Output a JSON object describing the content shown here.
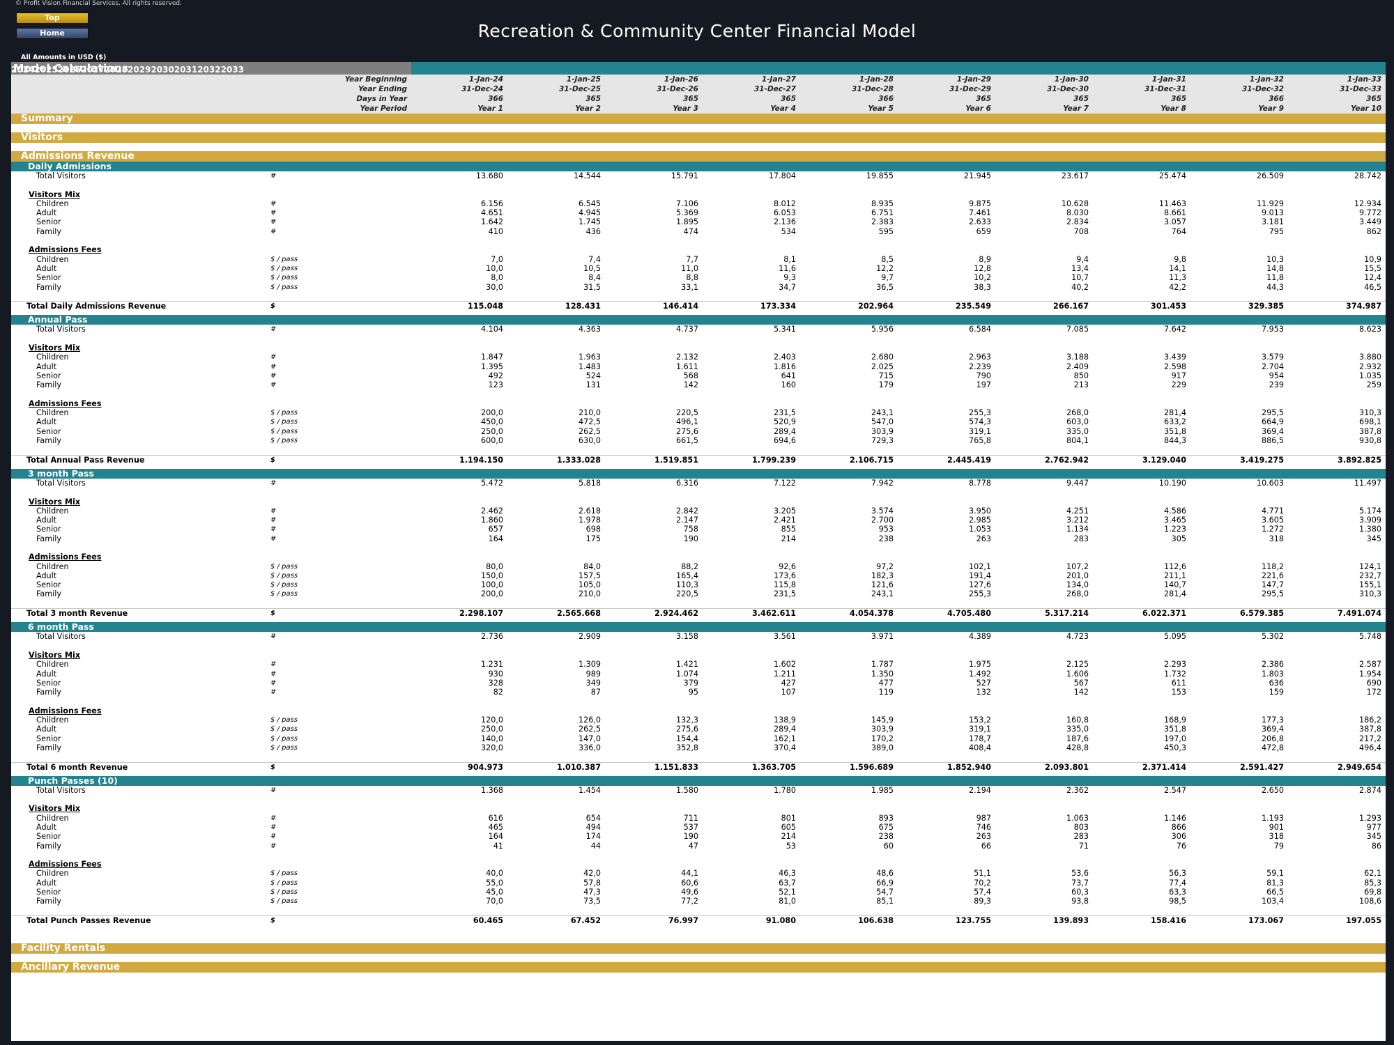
{
  "copyright": "© Profit Vision Financial Services. All rights reserved.",
  "nav": {
    "top": "Top",
    "home": "Home"
  },
  "title": "Recreation & Community Center Financial Model",
  "amounts_note": "All Amounts in  USD ($)",
  "header": {
    "title": "Model Calculations",
    "years": [
      "2024",
      "2025",
      "2026",
      "2027",
      "2028",
      "2029",
      "2030",
      "2031",
      "2032",
      "2033"
    ]
  },
  "timeline": [
    {
      "label": "Year Beginning",
      "values": [
        "1-Jan-24",
        "1-Jan-25",
        "1-Jan-26",
        "1-Jan-27",
        "1-Jan-28",
        "1-Jan-29",
        "1-Jan-30",
        "1-Jan-31",
        "1-Jan-32",
        "1-Jan-33"
      ]
    },
    {
      "label": "Year Ending",
      "values": [
        "31-Dec-24",
        "31-Dec-25",
        "31-Dec-26",
        "31-Dec-27",
        "31-Dec-28",
        "31-Dec-29",
        "31-Dec-30",
        "31-Dec-31",
        "31-Dec-32",
        "31-Dec-33"
      ]
    },
    {
      "label": "Days in Year",
      "values": [
        "366",
        "365",
        "365",
        "365",
        "366",
        "365",
        "365",
        "365",
        "366",
        "365"
      ]
    },
    {
      "label": "Year Period",
      "values": [
        "Year 1",
        "Year 2",
        "Year 3",
        "Year 4",
        "Year 5",
        "Year 6",
        "Year 7",
        "Year 8",
        "Year 9",
        "Year 10"
      ]
    }
  ],
  "sections": {
    "summary": "Summary",
    "visitors": "Visitors",
    "admissions": "Admissions Revenue",
    "facility": "Facility Rentals",
    "ancillary": "Ancillary Revenue"
  },
  "labels": {
    "total_visitors": "Total Visitors",
    "visitors_mix": "Visitors Mix",
    "admissions_fees": "Admissions Fees",
    "children": "Children",
    "adult": "Adult",
    "senior": "Senior",
    "family": "Family",
    "unit_count": "#",
    "unit_pass": "$ / pass",
    "unit_dollar": "$"
  },
  "blocks": [
    {
      "name": "Daily Admissions",
      "total_visitors": [
        "13.680",
        "14.544",
        "15.791",
        "17.804",
        "19.855",
        "21.945",
        "23.617",
        "25.474",
        "26.509",
        "28.742"
      ],
      "mix": [
        [
          "6.156",
          "6.545",
          "7.106",
          "8.012",
          "8.935",
          "9.875",
          "10.628",
          "11.463",
          "11.929",
          "12.934"
        ],
        [
          "4.651",
          "4.945",
          "5.369",
          "6.053",
          "6.751",
          "7.461",
          "8.030",
          "8.661",
          "9.013",
          "9.772"
        ],
        [
          "1.642",
          "1.745",
          "1.895",
          "2.136",
          "2.383",
          "2.633",
          "2.834",
          "3.057",
          "3.181",
          "3.449"
        ],
        [
          "410",
          "436",
          "474",
          "534",
          "595",
          "659",
          "708",
          "764",
          "795",
          "862"
        ]
      ],
      "fees": [
        [
          "7,0",
          "7,4",
          "7,7",
          "8,1",
          "8,5",
          "8,9",
          "9,4",
          "9,8",
          "10,3",
          "10,9"
        ],
        [
          "10,0",
          "10,5",
          "11,0",
          "11,6",
          "12,2",
          "12,8",
          "13,4",
          "14,1",
          "14,8",
          "15,5"
        ],
        [
          "8,0",
          "8,4",
          "8,8",
          "9,3",
          "9,7",
          "10,2",
          "10,7",
          "11,3",
          "11,8",
          "12,4"
        ],
        [
          "30,0",
          "31,5",
          "33,1",
          "34,7",
          "36,5",
          "38,3",
          "40,2",
          "42,2",
          "44,3",
          "46,5"
        ]
      ],
      "total_label": "Total Daily Admissions Revenue",
      "total": [
        "115.048",
        "128.431",
        "146.414",
        "173.334",
        "202.964",
        "235.549",
        "266.167",
        "301.453",
        "329.385",
        "374.987"
      ]
    },
    {
      "name": "Annual Pass",
      "total_visitors": [
        "4.104",
        "4.363",
        "4.737",
        "5.341",
        "5.956",
        "6.584",
        "7.085",
        "7.642",
        "7.953",
        "8.623"
      ],
      "mix": [
        [
          "1.847",
          "1.963",
          "2.132",
          "2.403",
          "2.680",
          "2.963",
          "3.188",
          "3.439",
          "3.579",
          "3.880"
        ],
        [
          "1.395",
          "1.483",
          "1.611",
          "1.816",
          "2.025",
          "2.239",
          "2.409",
          "2.598",
          "2.704",
          "2.932"
        ],
        [
          "492",
          "524",
          "568",
          "641",
          "715",
          "790",
          "850",
          "917",
          "954",
          "1.035"
        ],
        [
          "123",
          "131",
          "142",
          "160",
          "179",
          "197",
          "213",
          "229",
          "239",
          "259"
        ]
      ],
      "fees": [
        [
          "200,0",
          "210,0",
          "220,5",
          "231,5",
          "243,1",
          "255,3",
          "268,0",
          "281,4",
          "295,5",
          "310,3"
        ],
        [
          "450,0",
          "472,5",
          "496,1",
          "520,9",
          "547,0",
          "574,3",
          "603,0",
          "633,2",
          "664,9",
          "698,1"
        ],
        [
          "250,0",
          "262,5",
          "275,6",
          "289,4",
          "303,9",
          "319,1",
          "335,0",
          "351,8",
          "369,4",
          "387,8"
        ],
        [
          "600,0",
          "630,0",
          "661,5",
          "694,6",
          "729,3",
          "765,8",
          "804,1",
          "844,3",
          "886,5",
          "930,8"
        ]
      ],
      "total_label": "Total Annual Pass Revenue",
      "total": [
        "1.194.150",
        "1.333.028",
        "1.519.851",
        "1.799.239",
        "2.106.715",
        "2.445.419",
        "2.762.942",
        "3.129.040",
        "3.419.275",
        "3.892.825"
      ]
    },
    {
      "name": "3 month Pass",
      "total_visitors": [
        "5.472",
        "5.818",
        "6.316",
        "7.122",
        "7.942",
        "8.778",
        "9.447",
        "10.190",
        "10.603",
        "11.497"
      ],
      "mix": [
        [
          "2.462",
          "2.618",
          "2.842",
          "3.205",
          "3.574",
          "3.950",
          "4.251",
          "4.586",
          "4.771",
          "5.174"
        ],
        [
          "1.860",
          "1.978",
          "2.147",
          "2.421",
          "2.700",
          "2.985",
          "3.212",
          "3.465",
          "3.605",
          "3.909"
        ],
        [
          "657",
          "698",
          "758",
          "855",
          "953",
          "1.053",
          "1.134",
          "1.223",
          "1.272",
          "1.380"
        ],
        [
          "164",
          "175",
          "190",
          "214",
          "238",
          "263",
          "283",
          "305",
          "318",
          "345"
        ]
      ],
      "fees": [
        [
          "80,0",
          "84,0",
          "88,2",
          "92,6",
          "97,2",
          "102,1",
          "107,2",
          "112,6",
          "118,2",
          "124,1"
        ],
        [
          "150,0",
          "157,5",
          "165,4",
          "173,6",
          "182,3",
          "191,4",
          "201,0",
          "211,1",
          "221,6",
          "232,7"
        ],
        [
          "100,0",
          "105,0",
          "110,3",
          "115,8",
          "121,6",
          "127,6",
          "134,0",
          "140,7",
          "147,7",
          "155,1"
        ],
        [
          "200,0",
          "210,0",
          "220,5",
          "231,5",
          "243,1",
          "255,3",
          "268,0",
          "281,4",
          "295,5",
          "310,3"
        ]
      ],
      "total_label": "Total 3 month Revenue",
      "total": [
        "2.298.107",
        "2.565.668",
        "2.924.462",
        "3.462.611",
        "4.054.378",
        "4.705.480",
        "5.317.214",
        "6.022.371",
        "6.579.385",
        "7.491.074"
      ]
    },
    {
      "name": "6 month Pass",
      "total_visitors": [
        "2.736",
        "2.909",
        "3.158",
        "3.561",
        "3.971",
        "4.389",
        "4.723",
        "5.095",
        "5.302",
        "5.748"
      ],
      "mix": [
        [
          "1.231",
          "1.309",
          "1.421",
          "1.602",
          "1.787",
          "1.975",
          "2.125",
          "2.293",
          "2.386",
          "2.587"
        ],
        [
          "930",
          "989",
          "1.074",
          "1.211",
          "1.350",
          "1.492",
          "1.606",
          "1.732",
          "1.803",
          "1.954"
        ],
        [
          "328",
          "349",
          "379",
          "427",
          "477",
          "527",
          "567",
          "611",
          "636",
          "690"
        ],
        [
          "82",
          "87",
          "95",
          "107",
          "119",
          "132",
          "142",
          "153",
          "159",
          "172"
        ]
      ],
      "fees": [
        [
          "120,0",
          "126,0",
          "132,3",
          "138,9",
          "145,9",
          "153,2",
          "160,8",
          "168,9",
          "177,3",
          "186,2"
        ],
        [
          "250,0",
          "262,5",
          "275,6",
          "289,4",
          "303,9",
          "319,1",
          "335,0",
          "351,8",
          "369,4",
          "387,8"
        ],
        [
          "140,0",
          "147,0",
          "154,4",
          "162,1",
          "170,2",
          "178,7",
          "187,6",
          "197,0",
          "206,8",
          "217,2"
        ],
        [
          "320,0",
          "336,0",
          "352,8",
          "370,4",
          "389,0",
          "408,4",
          "428,8",
          "450,3",
          "472,8",
          "496,4"
        ]
      ],
      "total_label": "Total 6 month Revenue",
      "total": [
        "904.973",
        "1.010.387",
        "1.151.833",
        "1.363.705",
        "1.596.689",
        "1.852.940",
        "2.093.801",
        "2.371.414",
        "2.591.427",
        "2.949.654"
      ]
    },
    {
      "name": "Punch Passes (10)",
      "total_visitors": [
        "1.368",
        "1.454",
        "1.580",
        "1.780",
        "1.985",
        "2.194",
        "2.362",
        "2.547",
        "2.650",
        "2.874"
      ],
      "mix": [
        [
          "616",
          "654",
          "711",
          "801",
          "893",
          "987",
          "1.063",
          "1.146",
          "1.193",
          "1.293"
        ],
        [
          "465",
          "494",
          "537",
          "605",
          "675",
          "746",
          "803",
          "866",
          "901",
          "977"
        ],
        [
          "164",
          "174",
          "190",
          "214",
          "238",
          "263",
          "283",
          "306",
          "318",
          "345"
        ],
        [
          "41",
          "44",
          "47",
          "53",
          "60",
          "66",
          "71",
          "76",
          "79",
          "86"
        ]
      ],
      "fees": [
        [
          "40,0",
          "42,0",
          "44,1",
          "46,3",
          "48,6",
          "51,1",
          "53,6",
          "56,3",
          "59,1",
          "62,1"
        ],
        [
          "55,0",
          "57,8",
          "60,6",
          "63,7",
          "66,9",
          "70,2",
          "73,7",
          "77,4",
          "81,3",
          "85,3"
        ],
        [
          "45,0",
          "47,3",
          "49,6",
          "52,1",
          "54,7",
          "57,4",
          "60,3",
          "63,3",
          "66,5",
          "69,8"
        ],
        [
          "70,0",
          "73,5",
          "77,2",
          "81,0",
          "85,1",
          "89,3",
          "93,8",
          "98,5",
          "103,4",
          "108,6"
        ]
      ],
      "total_label": "Total Punch Passes Revenue",
      "total": [
        "60.465",
        "67.452",
        "76.997",
        "91.080",
        "106.638",
        "123.755",
        "139.893",
        "158.416",
        "173.067",
        "197.055"
      ]
    }
  ]
}
